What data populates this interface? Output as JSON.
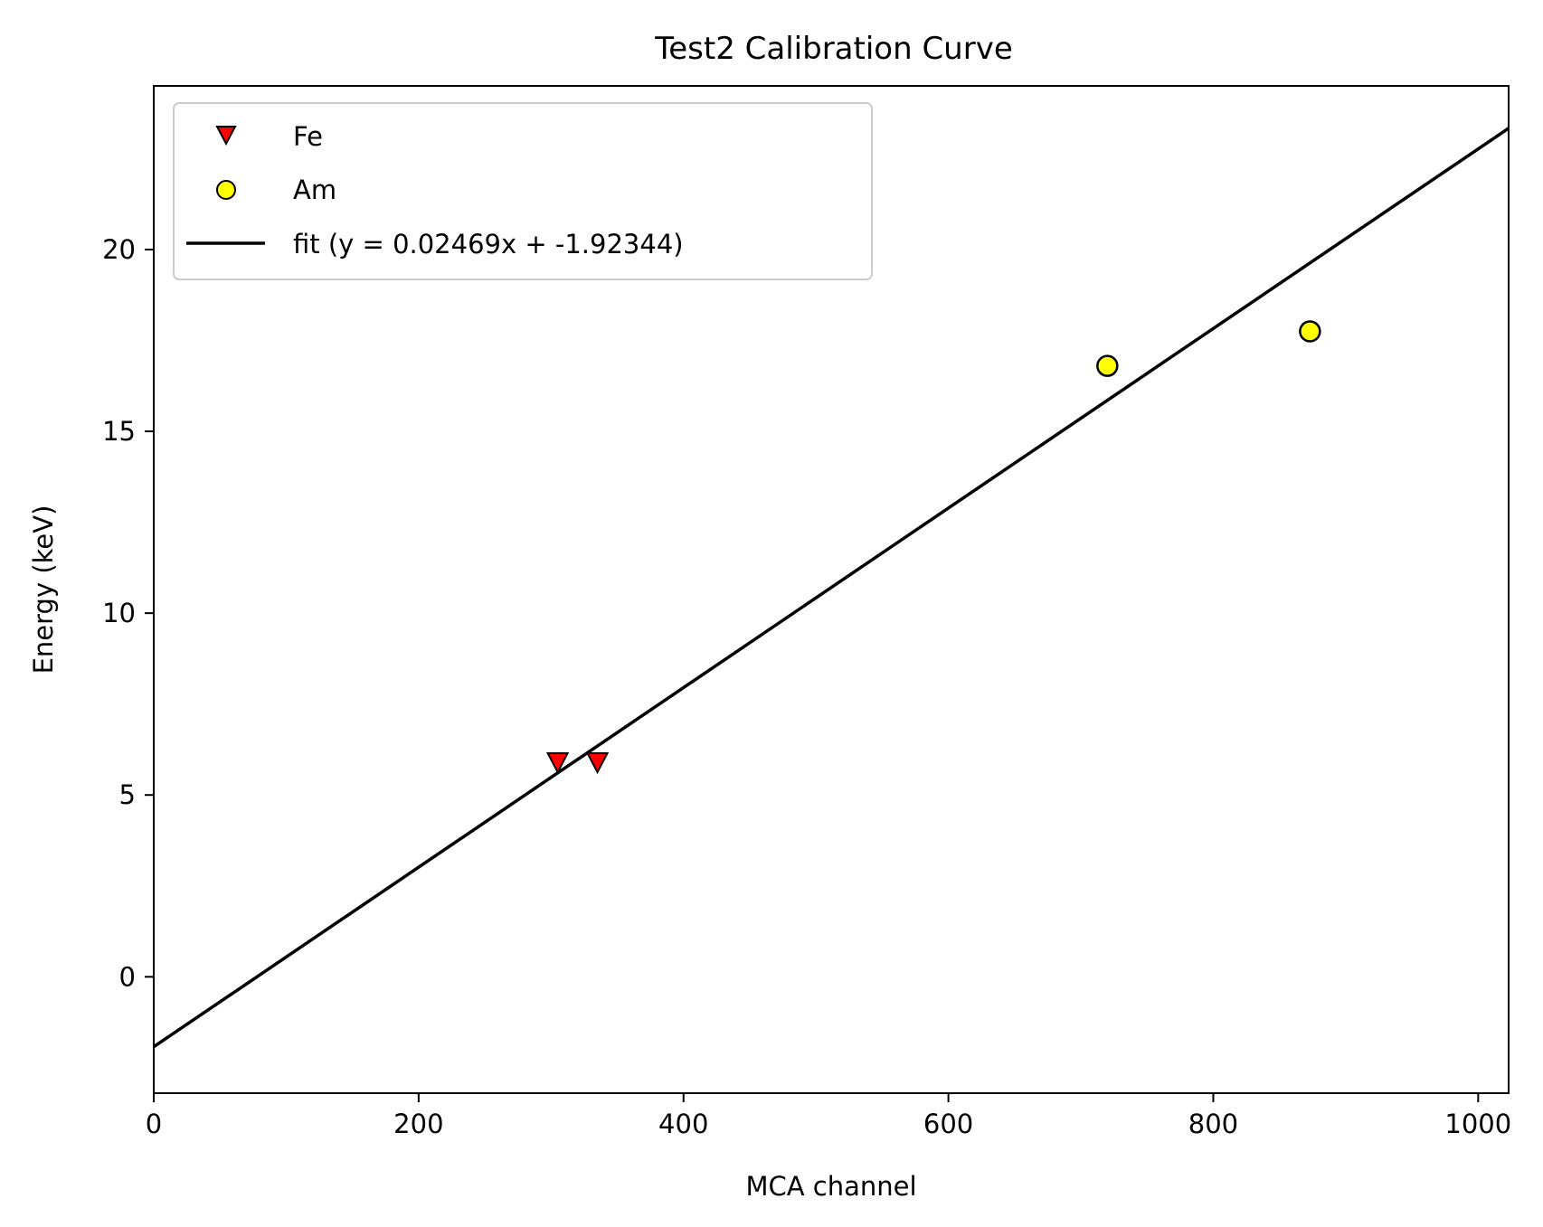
{
  "chart_data": {
    "type": "scatter",
    "title": "Test2 Calibration Curve",
    "xlabel": "MCA channel",
    "ylabel": "Energy (keV)",
    "xlim": [
      0,
      1023
    ],
    "ylim": [
      -3.2,
      24.5
    ],
    "xticks": [
      0,
      200,
      400,
      600,
      800,
      1000
    ],
    "xtick_labels": [
      "0",
      "200",
      "400",
      "600",
      "800",
      "1000"
    ],
    "yticks": [
      0,
      5,
      10,
      15,
      20
    ],
    "ytick_labels": [
      "0",
      "5",
      "10",
      "15",
      "20"
    ],
    "grid": false,
    "legend_position": "top-left",
    "series": [
      {
        "name": "Fe",
        "kind": "scatter",
        "marker": "triangle-down",
        "color": "#ff0000",
        "edge_color": "#000000",
        "points": [
          {
            "x": 305,
            "y": 5.9
          },
          {
            "x": 335,
            "y": 5.9
          }
        ]
      },
      {
        "name": "Am",
        "kind": "scatter",
        "marker": "circle",
        "color": "#ffff00",
        "edge_color": "#000000",
        "points": [
          {
            "x": 720,
            "y": 16.8
          },
          {
            "x": 873,
            "y": 17.75
          }
        ]
      },
      {
        "name": "fit (y = 0.02469x + -1.92344)",
        "kind": "line",
        "color": "#000000",
        "slope": 0.02469,
        "intercept": -1.92344,
        "x_range": [
          0,
          1023
        ]
      }
    ]
  }
}
